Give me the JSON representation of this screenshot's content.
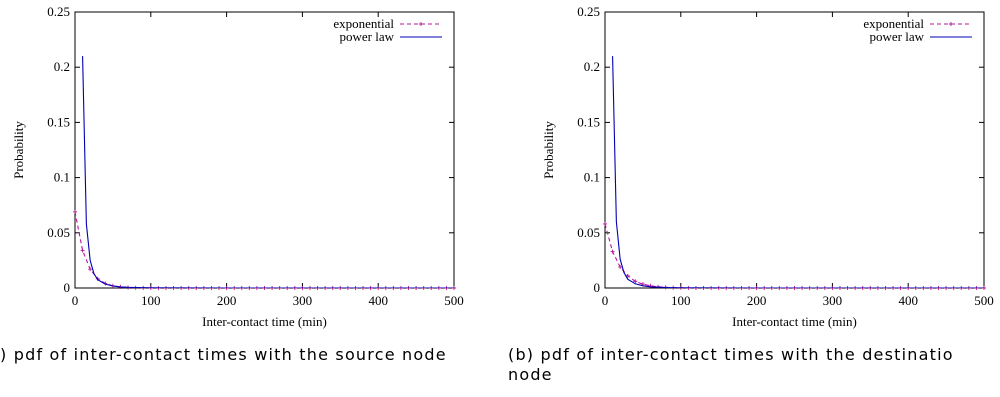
{
  "chart_data": [
    {
      "type": "line",
      "caption": ") pdf of inter-contact times with the source node",
      "xlabel": "Inter-contact time (min)",
      "ylabel": "Probability",
      "xlim": [
        0,
        500
      ],
      "ylim": [
        0,
        0.25
      ],
      "xticks": [
        "0",
        "100",
        "200",
        "300",
        "400",
        "500"
      ],
      "yticks": [
        "0",
        "0.05",
        "0.1",
        "0.15",
        "0.2",
        "0.25"
      ],
      "grid": false,
      "legend_position": "top-right",
      "series": [
        {
          "name": "exponential",
          "style": "dashed-with-points",
          "color": "#b5179e",
          "x": [
            0,
            10,
            20,
            30,
            40,
            50,
            60,
            70,
            80,
            90,
            100,
            110,
            120,
            130,
            140,
            150,
            160,
            170,
            180,
            190,
            200,
            210,
            220,
            230,
            240,
            250,
            260,
            270,
            280,
            290,
            300,
            310,
            320,
            330,
            340,
            350,
            360,
            370,
            380,
            390,
            400,
            410,
            420,
            430,
            440,
            450,
            460,
            470,
            480,
            490,
            500
          ],
          "y": [
            0.069,
            0.034,
            0.017,
            0.0083,
            0.0041,
            0.002,
            0.001,
            0.0005,
            0.00025,
            0.0001,
            0,
            0,
            0,
            0,
            0,
            0,
            0,
            0,
            0,
            0,
            0,
            0,
            0,
            0,
            0,
            0,
            0,
            0,
            0,
            0,
            0,
            0,
            0,
            0,
            0,
            0,
            0,
            0,
            0,
            0,
            0,
            0,
            0,
            0,
            0,
            0,
            0,
            0,
            0,
            0,
            0
          ]
        },
        {
          "name": "power law",
          "style": "solid",
          "color": "#0000b4",
          "x": [
            10,
            15,
            20,
            25,
            30,
            40,
            50,
            60,
            70,
            80,
            100,
            150,
            200,
            250,
            300,
            350,
            400,
            450,
            500
          ],
          "y": [
            0.21,
            0.058,
            0.025,
            0.013,
            0.0075,
            0.0035,
            0.0018,
            0.001,
            0.0006,
            0.0004,
            0.0002,
            0.0001,
            0,
            0,
            0,
            0,
            0,
            0,
            0
          ]
        }
      ]
    },
    {
      "type": "line",
      "caption": "(b) pdf of inter-contact times with the destinatio\nnode",
      "xlabel": "Inter-contact time (min)",
      "ylabel": "Probability",
      "xlim": [
        0,
        500
      ],
      "ylim": [
        0,
        0.25
      ],
      "xticks": [
        "0",
        "100",
        "200",
        "300",
        "400",
        "500"
      ],
      "yticks": [
        "0",
        "0.05",
        "0.1",
        "0.15",
        "0.2",
        "0.25"
      ],
      "grid": false,
      "legend_position": "top-right",
      "series": [
        {
          "name": "exponential",
          "style": "dashed-with-points",
          "color": "#b5179e",
          "x": [
            0,
            10,
            20,
            30,
            40,
            50,
            60,
            70,
            80,
            90,
            100,
            110,
            120,
            130,
            140,
            150,
            160,
            170,
            180,
            190,
            200,
            210,
            220,
            230,
            240,
            250,
            260,
            270,
            280,
            290,
            300,
            310,
            320,
            330,
            340,
            350,
            360,
            370,
            380,
            390,
            400,
            410,
            420,
            430,
            440,
            450,
            460,
            470,
            480,
            490,
            500
          ],
          "y": [
            0.058,
            0.033,
            0.019,
            0.011,
            0.006,
            0.0035,
            0.002,
            0.0011,
            0.0006,
            0.0003,
            0.0002,
            0,
            0,
            0,
            0,
            0,
            0,
            0,
            0,
            0,
            0,
            0,
            0,
            0,
            0,
            0,
            0,
            0,
            0,
            0,
            0,
            0,
            0,
            0,
            0,
            0,
            0,
            0,
            0,
            0,
            0,
            0,
            0,
            0,
            0,
            0,
            0,
            0,
            0,
            0,
            0
          ]
        },
        {
          "name": "power law",
          "style": "solid",
          "color": "#0000b4",
          "x": [
            10,
            15,
            20,
            25,
            30,
            40,
            50,
            60,
            70,
            80,
            100,
            150,
            200,
            250,
            300,
            350,
            400,
            450,
            500
          ],
          "y": [
            0.21,
            0.06,
            0.026,
            0.014,
            0.008,
            0.0038,
            0.002,
            0.0011,
            0.0007,
            0.0004,
            0.0002,
            0.0001,
            0,
            0,
            0,
            0,
            0,
            0,
            0
          ]
        }
      ]
    }
  ]
}
